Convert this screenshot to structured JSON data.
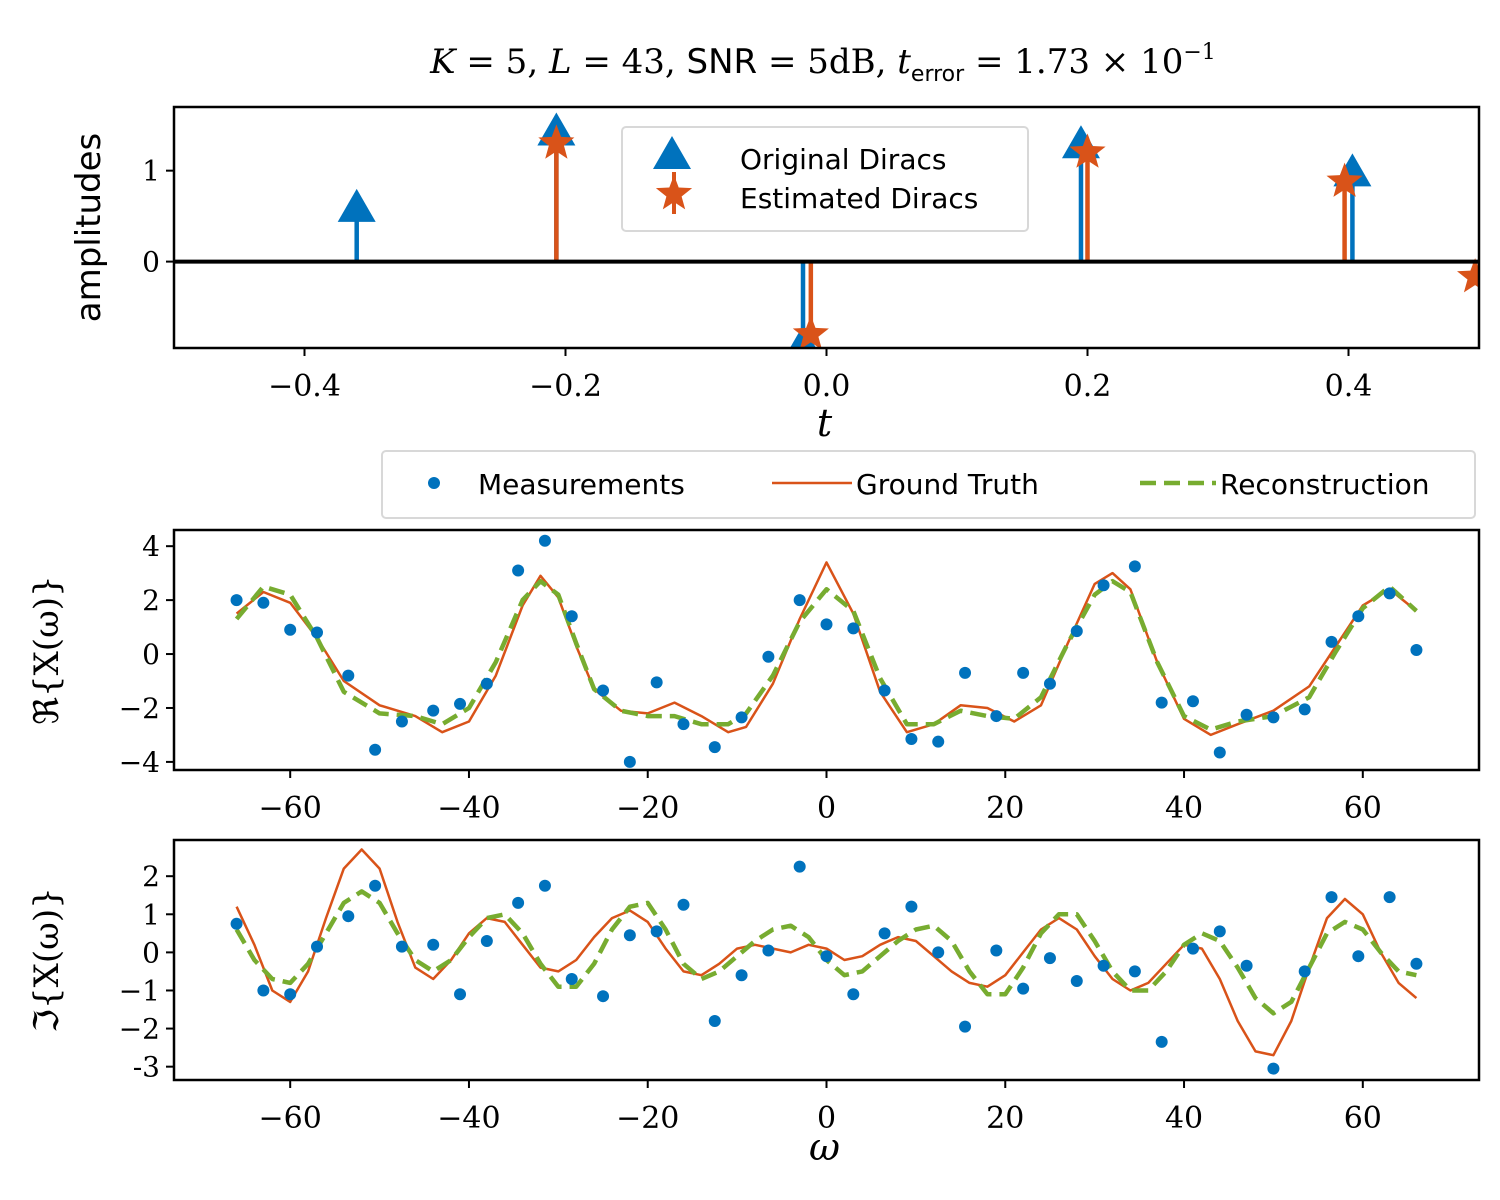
{
  "figure": {
    "title": "K = 5, L = 43, SNR = 5dB, t_error = 1.73 × 10^−1",
    "title_parts": {
      "K": "K",
      "eq_K": " = 5, ",
      "L": "L",
      "eq_L": " = 43, ",
      "snr": "SNR",
      "eq_snr": " = 5dB, ",
      "t": "t",
      "t_sub": "error",
      "eq_t": " = 1.73 × 10",
      "t_exp": "−1"
    }
  },
  "chart_data": [
    {
      "type": "stem",
      "panel": "dirac-panel",
      "xlabel": "t",
      "ylabel": "amplitudes",
      "xlim": [
        -0.5,
        0.5
      ],
      "ylim": [
        -0.95,
        1.7
      ],
      "xticks": [
        -0.4,
        -0.2,
        0.0,
        0.2,
        0.4
      ],
      "xtick_labels": [
        "−0.4",
        "−0.2",
        "0.0",
        "0.2",
        "0.4"
      ],
      "yticks": [
        0,
        1
      ],
      "ytick_labels": [
        "0",
        "1"
      ],
      "legend": {
        "placement": "top-center",
        "entries": [
          "Original Diracs",
          "Estimated Diracs"
        ]
      },
      "series": [
        {
          "name": "Original Diracs",
          "color": "#0072BD",
          "marker": "triangle",
          "x": [
            -0.36,
            -0.207,
            -0.018,
            0.195,
            0.403
          ],
          "y": [
            0.58,
            1.42,
            -0.92,
            1.28,
            0.97
          ]
        },
        {
          "name": "Estimated Diracs",
          "color": "#D95319",
          "marker": "star",
          "x": [
            -0.207,
            -0.012,
            0.2,
            0.397,
            0.497
          ],
          "y": [
            1.3,
            -0.8,
            1.2,
            0.88,
            -0.17
          ]
        }
      ]
    },
    {
      "type": "line",
      "panel": "real-panel",
      "xlabel": "",
      "ylabel": "ℜ{X(ω)}",
      "xlim": [
        -73,
        73
      ],
      "ylim": [
        -4.3,
        4.6
      ],
      "xticks": [
        -60,
        -40,
        -20,
        0,
        20,
        40,
        60
      ],
      "xtick_labels": [
        "−60",
        "−40",
        "−20",
        "0",
        "20",
        "40",
        "60"
      ],
      "yticks": [
        -4,
        -2,
        0,
        2,
        4
      ],
      "ytick_labels": [
        "−4",
        "−2",
        "0",
        "2",
        "4"
      ],
      "legend": {
        "placement": "above",
        "entries": [
          "Measurements",
          "Ground Truth",
          "Reconstruction"
        ]
      },
      "series": [
        {
          "name": "Measurements",
          "color": "#0072BD",
          "style": "points",
          "x": [
            -66,
            -63,
            -60,
            -57,
            -53.5,
            -50.5,
            -47.5,
            -44,
            -41,
            -38,
            -34.5,
            -31.5,
            -28.5,
            -25,
            -22,
            -19,
            -16,
            -12.5,
            -9.5,
            -6.5,
            -3,
            0,
            3,
            6.5,
            9.5,
            12.5,
            15.5,
            19,
            22,
            25,
            28,
            31,
            34.5,
            37.5,
            41,
            44,
            47,
            50,
            53.5,
            56.5,
            59.5,
            63,
            66
          ],
          "y": [
            2.0,
            1.9,
            0.9,
            0.8,
            -0.8,
            -3.55,
            -2.5,
            -2.1,
            -1.85,
            -1.1,
            3.1,
            4.2,
            1.4,
            -1.35,
            -4.0,
            -1.05,
            -2.6,
            -3.45,
            -2.35,
            -0.1,
            2.0,
            1.1,
            0.95,
            -1.35,
            -3.15,
            -3.25,
            -0.7,
            -2.3,
            -0.7,
            -1.1,
            0.85,
            2.55,
            3.25,
            -1.8,
            -1.75,
            -3.65,
            -2.25,
            -2.35,
            -2.05,
            0.45,
            1.4,
            2.25,
            0.15
          ]
        },
        {
          "name": "Ground Truth",
          "color": "#D95319",
          "style": "solid",
          "x": [
            -66,
            -63,
            -60,
            -57,
            -54,
            -50,
            -46,
            -43,
            -40,
            -37,
            -34,
            -32,
            -30,
            -28,
            -26,
            -23,
            -20,
            -17,
            -14,
            -11,
            -9,
            -6,
            -3,
            0,
            3,
            6,
            9,
            12,
            15,
            18,
            21,
            24,
            27,
            30,
            32,
            34,
            37,
            40,
            43,
            46,
            50,
            54,
            57,
            60,
            63,
            66
          ],
          "y": [
            1.5,
            2.3,
            1.9,
            0.6,
            -1.0,
            -1.9,
            -2.3,
            -2.9,
            -2.5,
            -0.8,
            1.8,
            2.9,
            2.1,
            0.3,
            -1.3,
            -2.1,
            -2.2,
            -1.8,
            -2.3,
            -2.9,
            -2.7,
            -1.1,
            1.3,
            3.4,
            1.5,
            -1.4,
            -2.9,
            -2.6,
            -1.9,
            -2.0,
            -2.5,
            -1.9,
            0.4,
            2.6,
            3.0,
            2.4,
            -0.3,
            -2.4,
            -3.0,
            -2.6,
            -2.1,
            -1.2,
            0.3,
            1.8,
            2.4,
            1.6
          ]
        },
        {
          "name": "Reconstruction",
          "color": "#77AC30",
          "style": "dashed",
          "x": [
            -66,
            -63,
            -60,
            -57,
            -54,
            -50,
            -46,
            -43,
            -40,
            -37,
            -34,
            -32,
            -30,
            -28,
            -26,
            -23,
            -20,
            -17,
            -14,
            -11,
            -9,
            -6,
            -3,
            0,
            3,
            6,
            9,
            12,
            15,
            18,
            21,
            24,
            27,
            30,
            32,
            34,
            37,
            40,
            43,
            46,
            50,
            54,
            57,
            60,
            63,
            66
          ],
          "y": [
            1.3,
            2.5,
            2.2,
            0.6,
            -1.4,
            -2.2,
            -2.3,
            -2.6,
            -2.0,
            -0.3,
            2.0,
            2.7,
            2.2,
            0.4,
            -1.3,
            -2.1,
            -2.3,
            -2.3,
            -2.6,
            -2.6,
            -2.2,
            -0.8,
            1.2,
            2.4,
            1.6,
            -0.9,
            -2.6,
            -2.6,
            -2.1,
            -2.3,
            -2.4,
            -1.6,
            0.4,
            2.2,
            2.7,
            2.3,
            -0.3,
            -2.3,
            -2.8,
            -2.5,
            -2.3,
            -1.6,
            0.1,
            1.7,
            2.5,
            1.6
          ]
        }
      ]
    },
    {
      "type": "line",
      "panel": "imag-panel",
      "xlabel": "ω",
      "ylabel": "ℑ{X(ω)}",
      "xlim": [
        -73,
        73
      ],
      "ylim": [
        -3.35,
        2.95
      ],
      "xticks": [
        -60,
        -40,
        -20,
        0,
        20,
        40,
        60
      ],
      "xtick_labels": [
        "−60",
        "−40",
        "−20",
        "0",
        "20",
        "40",
        "60"
      ],
      "yticks": [
        -3,
        -2,
        -1,
        0,
        1,
        2
      ],
      "ytick_labels": [
        "-3",
        "−2",
        "−1",
        "0",
        "1",
        "2"
      ],
      "series": [
        {
          "name": "Measurements",
          "color": "#0072BD",
          "style": "points",
          "x": [
            -66,
            -63,
            -60,
            -57,
            -53.5,
            -50.5,
            -47.5,
            -44,
            -41,
            -38,
            -34.5,
            -31.5,
            -28.5,
            -25,
            -22,
            -19,
            -16,
            -12.5,
            -9.5,
            -6.5,
            -3,
            0,
            3,
            6.5,
            9.5,
            12.5,
            15.5,
            19,
            22,
            25,
            28,
            31,
            34.5,
            37.5,
            41,
            44,
            47,
            50,
            53.5,
            56.5,
            59.5,
            63,
            66
          ],
          "y": [
            0.75,
            -1.0,
            -1.1,
            0.15,
            0.95,
            1.75,
            0.15,
            0.2,
            -1.1,
            0.3,
            1.3,
            1.75,
            -0.7,
            -1.15,
            0.45,
            0.55,
            1.25,
            -1.8,
            -0.6,
            0.05,
            2.25,
            -0.1,
            -1.1,
            0.5,
            1.2,
            0.0,
            -1.95,
            0.05,
            -0.95,
            -0.15,
            -0.75,
            -0.35,
            -0.5,
            -2.35,
            0.1,
            0.55,
            -0.35,
            -3.05,
            -0.5,
            1.45,
            -0.1,
            1.45,
            -0.3
          ]
        },
        {
          "name": "Ground Truth",
          "color": "#D95319",
          "style": "solid",
          "x": [
            -66,
            -64,
            -62,
            -60,
            -58,
            -56,
            -54,
            -52,
            -50,
            -48,
            -46,
            -44,
            -42,
            -40,
            -38,
            -36,
            -34,
            -32,
            -30,
            -28,
            -26,
            -24,
            -22,
            -20,
            -18,
            -16,
            -14,
            -12,
            -10,
            -8,
            -6,
            -4,
            -2,
            0,
            2,
            4,
            6,
            8,
            10,
            12,
            14,
            16,
            18,
            20,
            22,
            24,
            26,
            28,
            30,
            32,
            34,
            36,
            38,
            40,
            42,
            44,
            46,
            48,
            50,
            52,
            54,
            56,
            58,
            60,
            62,
            64,
            66
          ],
          "y": [
            1.2,
            0.2,
            -1.0,
            -1.3,
            -0.5,
            0.9,
            2.2,
            2.7,
            2.2,
            0.8,
            -0.4,
            -0.7,
            -0.2,
            0.5,
            0.9,
            0.8,
            0.2,
            -0.4,
            -0.5,
            -0.2,
            0.4,
            0.9,
            1.1,
            0.8,
            0.1,
            -0.5,
            -0.6,
            -0.3,
            0.1,
            0.2,
            0.1,
            0.0,
            0.2,
            0.1,
            -0.2,
            -0.1,
            0.2,
            0.4,
            0.3,
            -0.1,
            -0.5,
            -0.8,
            -0.9,
            -0.6,
            0.0,
            0.6,
            0.9,
            0.6,
            -0.1,
            -0.7,
            -1.0,
            -0.8,
            -0.3,
            0.2,
            0.1,
            -0.7,
            -1.8,
            -2.6,
            -2.7,
            -1.8,
            -0.4,
            0.9,
            1.4,
            1.0,
            0.0,
            -0.8,
            -1.2
          ]
        },
        {
          "name": "Reconstruction",
          "color": "#77AC30",
          "style": "dashed",
          "x": [
            -66,
            -64,
            -62,
            -60,
            -58,
            -56,
            -54,
            -52,
            -50,
            -48,
            -46,
            -44,
            -42,
            -40,
            -38,
            -36,
            -34,
            -32,
            -30,
            -28,
            -26,
            -24,
            -22,
            -20,
            -18,
            -16,
            -14,
            -12,
            -10,
            -8,
            -6,
            -4,
            -2,
            0,
            2,
            4,
            6,
            8,
            10,
            12,
            14,
            16,
            18,
            20,
            22,
            24,
            26,
            28,
            30,
            32,
            34,
            36,
            38,
            40,
            42,
            44,
            46,
            48,
            50,
            52,
            54,
            56,
            58,
            60,
            62,
            64,
            66
          ],
          "y": [
            0.6,
            -0.2,
            -0.7,
            -0.8,
            -0.3,
            0.5,
            1.3,
            1.6,
            1.3,
            0.5,
            -0.2,
            -0.5,
            -0.2,
            0.4,
            0.9,
            1.0,
            0.5,
            -0.3,
            -0.9,
            -0.9,
            -0.3,
            0.6,
            1.2,
            1.3,
            0.6,
            -0.3,
            -0.7,
            -0.5,
            -0.1,
            0.3,
            0.6,
            0.7,
            0.4,
            -0.2,
            -0.6,
            -0.5,
            -0.1,
            0.3,
            0.6,
            0.7,
            0.3,
            -0.5,
            -1.1,
            -1.1,
            -0.4,
            0.5,
            1.0,
            1.0,
            0.3,
            -0.5,
            -1.0,
            -1.0,
            -0.5,
            0.2,
            0.5,
            0.3,
            -0.4,
            -1.2,
            -1.6,
            -1.3,
            -0.4,
            0.5,
            0.8,
            0.6,
            0.0,
            -0.5,
            -0.6
          ]
        }
      ]
    }
  ]
}
